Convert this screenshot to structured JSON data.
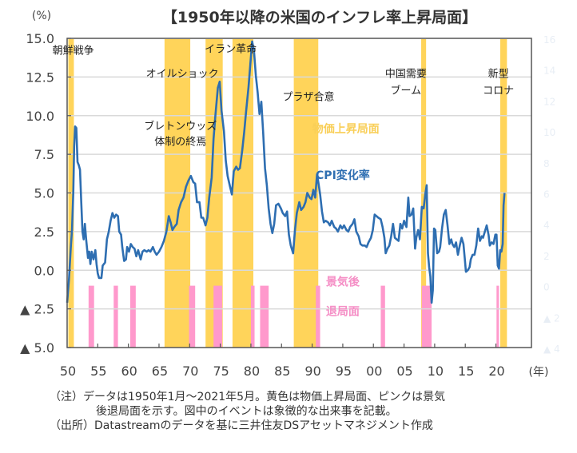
{
  "chart_data": {
    "type": "line",
    "title": "【1950年以降の米国のインフレ率上昇局面】",
    "ylabel": "(%)",
    "xlabel": "(年)",
    "ylim": [
      -5.0,
      15.0
    ],
    "xlim": [
      1950,
      2025.8
    ],
    "grid": true,
    "yticks": [
      {
        "value": 15.0,
        "label": "15.0"
      },
      {
        "value": 12.5,
        "label": "12.5"
      },
      {
        "value": 10.0,
        "label": "10.0"
      },
      {
        "value": 7.5,
        "label": "7.5"
      },
      {
        "value": 5.0,
        "label": "5.0"
      },
      {
        "value": 2.5,
        "label": "2.5"
      },
      {
        "value": 0.0,
        "label": "0.0"
      },
      {
        "value": -2.5,
        "label": "▲ 2.5"
      },
      {
        "value": -5.0,
        "label": "▲ 5.0"
      }
    ],
    "xticks": [
      {
        "value": 1950,
        "label": "50"
      },
      {
        "value": 1955,
        "label": "55"
      },
      {
        "value": 1960,
        "label": "60"
      },
      {
        "value": 1965,
        "label": "65"
      },
      {
        "value": 1970,
        "label": "70"
      },
      {
        "value": 1975,
        "label": "75"
      },
      {
        "value": 1980,
        "label": "80"
      },
      {
        "value": 1985,
        "label": "85"
      },
      {
        "value": 1990,
        "label": "90"
      },
      {
        "value": 1995,
        "label": "95"
      },
      {
        "value": 2000,
        "label": "00"
      },
      {
        "value": 2005,
        "label": "05"
      },
      {
        "value": 2010,
        "label": "10"
      },
      {
        "value": 2015,
        "label": "15"
      },
      {
        "value": 2020,
        "label": "20"
      }
    ],
    "secondary_axis_ghost_labels": [
      "16",
      "14",
      "12",
      "10",
      "8",
      "6",
      "4",
      "2",
      "0",
      "▲ 2",
      "▲ 4"
    ],
    "series": [
      {
        "name": "CPI変化率",
        "color": "#2E6EB1",
        "points": [
          [
            1950.0,
            -2.1
          ],
          [
            1950.3,
            -0.6
          ],
          [
            1950.6,
            1.5
          ],
          [
            1950.8,
            2.6
          ],
          [
            1951.0,
            5.0
          ],
          [
            1951.15,
            8.0
          ],
          [
            1951.3,
            9.3
          ],
          [
            1951.5,
            9.2
          ],
          [
            1951.7,
            7.0
          ],
          [
            1951.9,
            6.8
          ],
          [
            1952.1,
            6.5
          ],
          [
            1952.3,
            4.5
          ],
          [
            1952.5,
            2.5
          ],
          [
            1952.7,
            2.0
          ],
          [
            1952.9,
            3.0
          ],
          [
            1953.1,
            2.0
          ],
          [
            1953.4,
            0.8
          ],
          [
            1953.6,
            1.2
          ],
          [
            1953.8,
            0.4
          ],
          [
            1954.0,
            1.2
          ],
          [
            1954.3,
            0.7
          ],
          [
            1954.6,
            1.3
          ],
          [
            1954.8,
            0.4
          ],
          [
            1955.0,
            -0.2
          ],
          [
            1955.2,
            -0.5
          ],
          [
            1955.6,
            -0.5
          ],
          [
            1955.8,
            0.3
          ],
          [
            1956.2,
            0.5
          ],
          [
            1956.5,
            2.0
          ],
          [
            1956.8,
            2.5
          ],
          [
            1957.1,
            3.2
          ],
          [
            1957.4,
            3.7
          ],
          [
            1957.7,
            3.4
          ],
          [
            1958.0,
            3.6
          ],
          [
            1958.3,
            3.5
          ],
          [
            1958.5,
            2.5
          ],
          [
            1958.8,
            2.3
          ],
          [
            1959.0,
            1.5
          ],
          [
            1959.3,
            0.6
          ],
          [
            1959.6,
            0.7
          ],
          [
            1959.8,
            1.5
          ],
          [
            1960.1,
            1.2
          ],
          [
            1960.4,
            1.7
          ],
          [
            1960.7,
            1.5
          ],
          [
            1961.0,
            1.4
          ],
          [
            1961.3,
            0.9
          ],
          [
            1961.6,
            1.3
          ],
          [
            1962.0,
            0.7
          ],
          [
            1962.3,
            1.2
          ],
          [
            1962.6,
            1.3
          ],
          [
            1963.0,
            1.2
          ],
          [
            1963.3,
            1.3
          ],
          [
            1963.6,
            1.2
          ],
          [
            1964.0,
            1.5
          ],
          [
            1964.3,
            1.2
          ],
          [
            1964.6,
            1.0
          ],
          [
            1965.0,
            1.2
          ],
          [
            1965.4,
            1.5
          ],
          [
            1965.8,
            1.9
          ],
          [
            1966.2,
            2.5
          ],
          [
            1966.6,
            3.5
          ],
          [
            1966.9,
            3.1
          ],
          [
            1967.2,
            2.6
          ],
          [
            1967.5,
            2.8
          ],
          [
            1967.9,
            3.0
          ],
          [
            1968.2,
            3.9
          ],
          [
            1968.6,
            4.4
          ],
          [
            1969.0,
            4.7
          ],
          [
            1969.4,
            5.4
          ],
          [
            1969.8,
            5.8
          ],
          [
            1970.2,
            6.1
          ],
          [
            1970.6,
            5.7
          ],
          [
            1970.9,
            5.6
          ],
          [
            1971.2,
            4.4
          ],
          [
            1971.6,
            4.4
          ],
          [
            1971.9,
            3.4
          ],
          [
            1972.2,
            3.4
          ],
          [
            1972.6,
            2.9
          ],
          [
            1972.9,
            3.4
          ],
          [
            1973.2,
            4.7
          ],
          [
            1973.6,
            6.0
          ],
          [
            1973.9,
            8.5
          ],
          [
            1974.2,
            10.0
          ],
          [
            1974.6,
            11.8
          ],
          [
            1974.9,
            12.2
          ],
          [
            1975.2,
            10.3
          ],
          [
            1975.6,
            9.0
          ],
          [
            1975.9,
            7.1
          ],
          [
            1976.2,
            6.1
          ],
          [
            1976.6,
            5.4
          ],
          [
            1976.9,
            4.9
          ],
          [
            1977.2,
            6.4
          ],
          [
            1977.6,
            6.7
          ],
          [
            1977.9,
            6.5
          ],
          [
            1978.2,
            6.6
          ],
          [
            1978.6,
            7.8
          ],
          [
            1978.9,
            8.9
          ],
          [
            1979.2,
            10.2
          ],
          [
            1979.6,
            11.8
          ],
          [
            1979.9,
            13.3
          ],
          [
            1980.2,
            14.8
          ],
          [
            1980.5,
            14.2
          ],
          [
            1980.8,
            12.6
          ],
          [
            1981.1,
            11.5
          ],
          [
            1981.4,
            10.1
          ],
          [
            1981.7,
            10.9
          ],
          [
            1982.0,
            8.9
          ],
          [
            1982.3,
            6.6
          ],
          [
            1982.6,
            5.5
          ],
          [
            1982.9,
            4.0
          ],
          [
            1983.2,
            3.0
          ],
          [
            1983.5,
            2.4
          ],
          [
            1983.8,
            3.0
          ],
          [
            1984.1,
            4.2
          ],
          [
            1984.5,
            4.3
          ],
          [
            1984.9,
            4.0
          ],
          [
            1985.2,
            3.7
          ],
          [
            1985.6,
            3.5
          ],
          [
            1985.9,
            3.8
          ],
          [
            1986.2,
            2.3
          ],
          [
            1986.5,
            1.6
          ],
          [
            1986.9,
            1.1
          ],
          [
            1987.2,
            2.6
          ],
          [
            1987.5,
            3.7
          ],
          [
            1987.9,
            4.4
          ],
          [
            1988.2,
            3.9
          ],
          [
            1988.6,
            4.1
          ],
          [
            1988.9,
            4.4
          ],
          [
            1989.2,
            5.0
          ],
          [
            1989.6,
            4.7
          ],
          [
            1989.9,
            4.6
          ],
          [
            1990.2,
            5.2
          ],
          [
            1990.5,
            4.7
          ],
          [
            1990.8,
            6.2
          ],
          [
            1991.0,
            5.7
          ],
          [
            1991.3,
            4.9
          ],
          [
            1991.6,
            3.8
          ],
          [
            1991.9,
            3.1
          ],
          [
            1992.2,
            3.2
          ],
          [
            1992.6,
            3.1
          ],
          [
            1992.9,
            2.9
          ],
          [
            1993.2,
            3.2
          ],
          [
            1993.6,
            2.8
          ],
          [
            1993.9,
            2.7
          ],
          [
            1994.2,
            2.5
          ],
          [
            1994.6,
            2.9
          ],
          [
            1994.9,
            2.7
          ],
          [
            1995.2,
            2.9
          ],
          [
            1995.6,
            2.6
          ],
          [
            1995.9,
            2.5
          ],
          [
            1996.2,
            2.8
          ],
          [
            1996.6,
            3.0
          ],
          [
            1996.9,
            3.3
          ],
          [
            1997.2,
            2.5
          ],
          [
            1997.6,
            2.2
          ],
          [
            1997.9,
            1.7
          ],
          [
            1998.2,
            1.6
          ],
          [
            1998.6,
            1.6
          ],
          [
            1998.9,
            1.5
          ],
          [
            1999.2,
            1.8
          ],
          [
            1999.6,
            2.1
          ],
          [
            1999.9,
            2.6
          ],
          [
            2000.2,
            3.6
          ],
          [
            2000.5,
            3.5
          ],
          [
            2000.8,
            3.4
          ],
          [
            2001.2,
            3.3
          ],
          [
            2001.5,
            2.8
          ],
          [
            2001.8,
            2.1
          ],
          [
            2002.0,
            1.1
          ],
          [
            2002.3,
            1.4
          ],
          [
            2002.6,
            1.6
          ],
          [
            2002.9,
            2.2
          ],
          [
            2003.2,
            3.0
          ],
          [
            2003.5,
            2.1
          ],
          [
            2003.8,
            2.0
          ],
          [
            2004.1,
            1.9
          ],
          [
            2004.4,
            3.0
          ],
          [
            2004.7,
            2.7
          ],
          [
            2005.0,
            3.2
          ],
          [
            2005.4,
            2.8
          ],
          [
            2005.7,
            4.7
          ],
          [
            2005.9,
            3.5
          ],
          [
            2006.2,
            3.6
          ],
          [
            2006.5,
            4.0
          ],
          [
            2006.8,
            1.4
          ],
          [
            2007.0,
            2.1
          ],
          [
            2007.3,
            2.6
          ],
          [
            2007.6,
            2.0
          ],
          [
            2007.9,
            4.1
          ],
          [
            2008.2,
            4.0
          ],
          [
            2008.5,
            5.0
          ],
          [
            2008.7,
            5.5
          ],
          [
            2008.9,
            1.1
          ],
          [
            2009.1,
            0.2
          ],
          [
            2009.3,
            -0.4
          ],
          [
            2009.5,
            -2.1
          ],
          [
            2009.7,
            -1.3
          ],
          [
            2009.9,
            2.7
          ],
          [
            2010.1,
            2.6
          ],
          [
            2010.4,
            1.1
          ],
          [
            2010.7,
            1.2
          ],
          [
            2010.9,
            1.5
          ],
          [
            2011.2,
            2.7
          ],
          [
            2011.5,
            3.6
          ],
          [
            2011.8,
            3.9
          ],
          [
            2012.1,
            2.9
          ],
          [
            2012.4,
            1.7
          ],
          [
            2012.7,
            2.0
          ],
          [
            2012.9,
            1.7
          ],
          [
            2013.2,
            1.5
          ],
          [
            2013.5,
            1.8
          ],
          [
            2013.8,
            1.0
          ],
          [
            2014.1,
            1.6
          ],
          [
            2014.4,
            2.1
          ],
          [
            2014.7,
            1.7
          ],
          [
            2014.9,
            0.8
          ],
          [
            2015.1,
            -0.1
          ],
          [
            2015.4,
            0.0
          ],
          [
            2015.7,
            0.2
          ],
          [
            2015.9,
            0.7
          ],
          [
            2016.2,
            1.0
          ],
          [
            2016.5,
            1.0
          ],
          [
            2016.8,
            1.6
          ],
          [
            2017.1,
            2.7
          ],
          [
            2017.4,
            1.9
          ],
          [
            2017.7,
            2.2
          ],
          [
            2017.9,
            2.1
          ],
          [
            2018.2,
            2.5
          ],
          [
            2018.5,
            2.9
          ],
          [
            2018.8,
            2.3
          ],
          [
            2019.0,
            1.6
          ],
          [
            2019.3,
            1.8
          ],
          [
            2019.6,
            1.7
          ],
          [
            2019.9,
            2.3
          ],
          [
            2020.1,
            2.3
          ],
          [
            2020.3,
            0.3
          ],
          [
            2020.5,
            0.1
          ],
          [
            2020.7,
            1.3
          ],
          [
            2020.9,
            1.2
          ],
          [
            2021.1,
            1.7
          ],
          [
            2021.25,
            4.2
          ],
          [
            2021.4,
            5.0
          ]
        ]
      }
    ],
    "shaded_regions": [
      {
        "name": "物価上昇局面",
        "color": "#FFD45A",
        "ranges": [
          [
            1950.2,
            1951.1
          ],
          [
            1965.9,
            1970.1
          ],
          [
            1972.6,
            1975.4
          ],
          [
            1977.0,
            1980.4
          ],
          [
            1987.0,
            1991.0
          ],
          [
            2007.8,
            2008.6
          ],
          [
            2020.7,
            2021.8
          ]
        ]
      },
      {
        "name": "景気後退局面",
        "color": "#FF99CC",
        "ranges": [
          [
            1953.5,
            1954.4
          ],
          [
            1957.6,
            1958.3
          ],
          [
            1960.3,
            1961.2
          ],
          [
            1969.9,
            1970.9
          ],
          [
            1973.9,
            1975.3
          ],
          [
            1980.0,
            1980.6
          ],
          [
            1981.5,
            1982.9
          ],
          [
            1990.6,
            1991.3
          ],
          [
            2001.2,
            2001.9
          ],
          [
            2007.9,
            2009.5
          ],
          [
            2020.1,
            2020.4
          ]
        ]
      }
    ],
    "annotations": [
      {
        "text": "朝鮮戦争",
        "x": 1951.0,
        "y": 14.0
      },
      {
        "text": "オイルショック",
        "x": 1968.8,
        "y": 12.5
      },
      {
        "text": "イラン革命",
        "x": 1976.7,
        "y": 14.1
      },
      {
        "text": "ブレトンウッズ",
        "x": 1968.5,
        "y": 9.1
      },
      {
        "text": "体制の終焉",
        "x": 1968.5,
        "y": 8.1
      },
      {
        "text": "プラザ合意",
        "x": 1989.4,
        "y": 11.0
      },
      {
        "text": "中国需要",
        "x": 2005.3,
        "y": 12.5
      },
      {
        "text": "ブーム",
        "x": 2005.3,
        "y": 11.4
      },
      {
        "text": "新型",
        "x": 2020.4,
        "y": 12.5
      },
      {
        "text": "コロナ",
        "x": 2020.4,
        "y": 11.4
      }
    ],
    "legend": [
      {
        "text": "物価上昇局面",
        "kind": "yellow",
        "x": 1995.5,
        "y": 8.9
      },
      {
        "text": "CPI変化率",
        "kind": "blue",
        "x": 1995.0,
        "y": 5.9
      },
      {
        "text": "景気後",
        "kind": "pink",
        "x": 1995.0,
        "y": -1.0
      },
      {
        "text": "退局面",
        "kind": "pink",
        "x": 1995.0,
        "y": -2.9
      }
    ]
  },
  "notes": {
    "line1": "（注）データは1950年1月～2021年5月。黄色は物価上昇局面、ピンクは景気",
    "line2": "後退局面を示す。図中のイベントは象徴的な出来事を記載。",
    "line3": "（出所）Datastreamのデータを基に三井住友DSアセットマネジメント作成"
  }
}
